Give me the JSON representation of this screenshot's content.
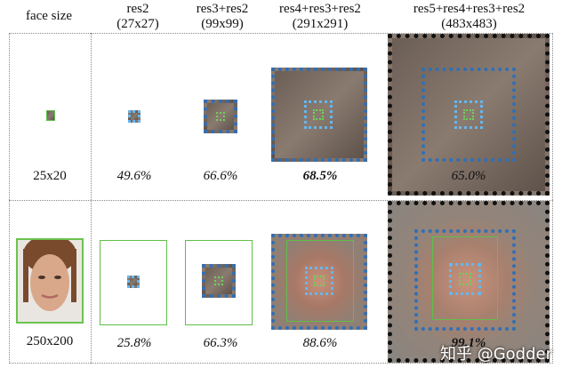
{
  "headers": {
    "face_size": "face size",
    "col1": [
      "res2",
      "(27x27)"
    ],
    "col2": [
      "res3+res2",
      "(99x99)"
    ],
    "col3": [
      "res4+res3+res2",
      "(291x291)"
    ],
    "col4": [
      "res5+res4+res3+res2",
      "(483x483)"
    ]
  },
  "row1": {
    "face_size": "25x20",
    "values": [
      "49.6%",
      "66.6%",
      "68.5%",
      "65.0%"
    ]
  },
  "row2": {
    "face_size": "250x200",
    "values": [
      "25.8%",
      "66.3%",
      "88.6%",
      "99.1%"
    ]
  },
  "watermark": "知乎 @Godder"
}
